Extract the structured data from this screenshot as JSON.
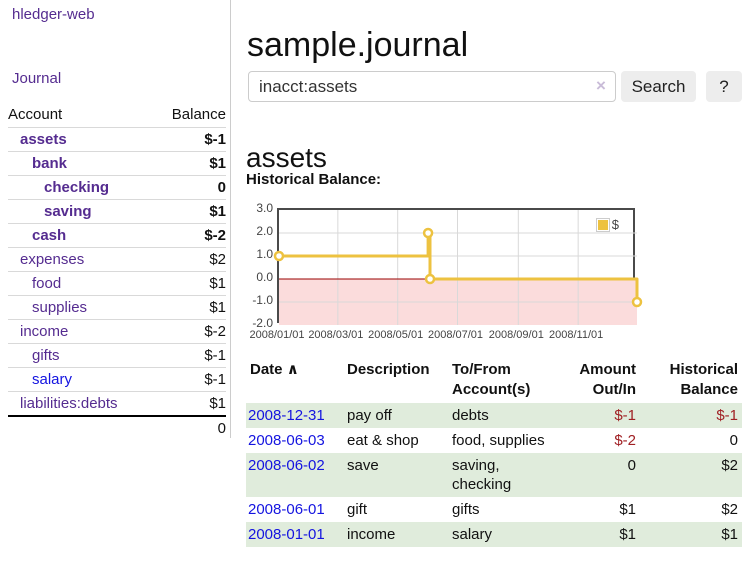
{
  "app": {
    "title": "hledger-web",
    "nav_journal": "Journal"
  },
  "sidebar": {
    "headers": {
      "account": "Account",
      "balance": "Balance"
    },
    "accounts": [
      {
        "name": "assets",
        "depth": 1,
        "bold": true,
        "balance": "$-1",
        "balance_style": "neg-strong",
        "link_style": "purple"
      },
      {
        "name": "bank",
        "depth": 2,
        "bold": true,
        "balance": "$1",
        "balance_style": "normal",
        "link_style": "purple"
      },
      {
        "name": "checking",
        "depth": 3,
        "bold": true,
        "balance": "0",
        "balance_style": "normal",
        "link_style": "purple"
      },
      {
        "name": "saving",
        "depth": 3,
        "bold": true,
        "balance": "$1",
        "balance_style": "normal",
        "link_style": "purple"
      },
      {
        "name": "cash",
        "depth": 2,
        "bold": true,
        "balance": "$-2",
        "balance_style": "neg-strong",
        "link_style": "purple"
      },
      {
        "name": "expenses",
        "depth": 1,
        "bold": false,
        "balance": "$2",
        "balance_style": "normal",
        "link_style": "purple"
      },
      {
        "name": "food",
        "depth": 2,
        "bold": false,
        "balance": "$1",
        "balance_style": "normal",
        "link_style": "purple"
      },
      {
        "name": "supplies",
        "depth": 2,
        "bold": false,
        "balance": "$1",
        "balance_style": "normal",
        "link_style": "purple"
      },
      {
        "name": "income",
        "depth": 1,
        "bold": false,
        "balance": "$-2",
        "balance_style": "neg-muted",
        "link_style": "purple"
      },
      {
        "name": "gifts",
        "depth": 2,
        "bold": false,
        "balance": "$-1",
        "balance_style": "neg-muted",
        "link_style": "purple"
      },
      {
        "name": "salary",
        "depth": 2,
        "bold": false,
        "balance": "$-1",
        "balance_style": "neg-muted",
        "link_style": "blue"
      },
      {
        "name": "liabilities:debts",
        "depth": 1,
        "bold": false,
        "balance": "$1",
        "balance_style": "normal",
        "link_style": "purple"
      }
    ],
    "total": "0"
  },
  "header": {
    "title": "sample.journal"
  },
  "search": {
    "value": "inacct:assets",
    "clear_icon": "×",
    "button_label": "Search",
    "help_label": "?"
  },
  "account_page": {
    "title": "assets",
    "chart_label": "Historical Balance:"
  },
  "chart_data": {
    "type": "line",
    "step": true,
    "title": "Historical Balance",
    "series": [
      {
        "name": "$",
        "color": "#edc240",
        "points": [
          [
            "2008-01-01",
            1
          ],
          [
            "2008-06-01",
            2
          ],
          [
            "2008-06-03",
            0
          ],
          [
            "2008-12-31",
            -1
          ]
        ]
      }
    ],
    "xrange": [
      "2008-01-01",
      "2008-12-31"
    ],
    "ylim": [
      -2,
      3
    ],
    "yticks": [
      {
        "value": 3,
        "label": "3.0"
      },
      {
        "value": 2,
        "label": "2.0"
      },
      {
        "value": 1,
        "label": "1.0"
      },
      {
        "value": 0,
        "label": "0.0"
      },
      {
        "value": -1,
        "label": "-1.0"
      },
      {
        "value": -2,
        "label": "-2.0"
      }
    ],
    "xticks": [
      {
        "date": "2008-01-01",
        "label": "2008/01/01"
      },
      {
        "date": "2008-03-01",
        "label": "2008/03/01"
      },
      {
        "date": "2008-05-01",
        "label": "2008/05/01"
      },
      {
        "date": "2008-07-01",
        "label": "2008/07/01"
      },
      {
        "date": "2008-09-01",
        "label": "2008/09/01"
      },
      {
        "date": "2008-11-01",
        "label": "2008/11/01"
      }
    ],
    "grid": true,
    "grid_color": "#d9d9d9",
    "zero_line_color": "#990000",
    "negative_fill": "#fbdcdc",
    "legend_position": "top-right"
  },
  "register": {
    "headers": {
      "date": "Date",
      "sort_icon": "∧",
      "description": "Description",
      "accounts": "To/From Account(s)",
      "amount": "Amount Out/In",
      "balance": "Historical Balance"
    },
    "rows": [
      {
        "date": "2008-12-31",
        "description": "pay off",
        "accounts": "debts",
        "amount": "$-1",
        "balance": "$-1"
      },
      {
        "date": "2008-06-03",
        "description": "eat & shop",
        "accounts": "food, supplies",
        "amount": "$-2",
        "balance": "0"
      },
      {
        "date": "2008-06-02",
        "description": "save",
        "accounts": "saving, checking",
        "amount": "0",
        "balance": "$2"
      },
      {
        "date": "2008-06-01",
        "description": "gift",
        "accounts": "gifts",
        "amount": "$1",
        "balance": "$2"
      },
      {
        "date": "2008-01-01",
        "description": "income",
        "accounts": "salary",
        "amount": "$1",
        "balance": "$1"
      }
    ]
  },
  "colors": {
    "link_purple": "#552c90",
    "link_blue": "#1414e0",
    "negative_strong": "#a02024",
    "negative_muted": "#c17476",
    "row_stripe_green": "#e0ecdc",
    "series_gold": "#edc240"
  }
}
